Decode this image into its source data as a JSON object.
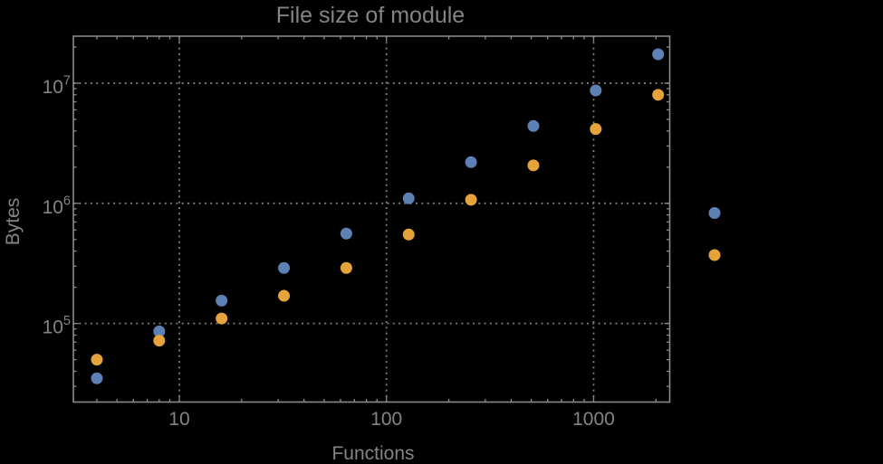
{
  "window": {
    "background": "#000000"
  },
  "colors": {
    "text": "#848484",
    "frame": "#8A8A8A",
    "gridline": "#7D7D7D",
    "series_blue": "#5E81B5",
    "series_orange": "#E6A33C"
  },
  "chart_data": {
    "type": "scatter",
    "title": "File size of module",
    "xlabel": "Functions",
    "ylabel": "Bytes",
    "x_scale": "log",
    "y_scale": "log",
    "grid": "dotted-major-decades",
    "x_domain": [
      3.08,
      2330
    ],
    "y_domain": [
      22200,
      24600000
    ],
    "x_major_ticks": [
      10,
      100,
      1000
    ],
    "y_major_ticks": [
      100000,
      1000000,
      10000000
    ],
    "x_tick_labels": [
      {
        "text": "10",
        "value": 10
      },
      {
        "text": "100",
        "value": 100
      },
      {
        "text": "1000",
        "value": 1000
      }
    ],
    "y_tick_labels": [
      {
        "base": "10",
        "exp": "5",
        "value": 100000
      },
      {
        "base": "10",
        "exp": "6",
        "value": 1000000
      },
      {
        "base": "10",
        "exp": "7",
        "value": 10000000
      }
    ],
    "x": [
      4,
      8,
      16,
      32,
      64,
      128,
      256,
      512,
      1024,
      2048
    ],
    "series": [
      {
        "name": "series-blue",
        "color": "#5E81B5",
        "values": [
          35000,
          86000,
          155000,
          290000,
          560000,
          1100000,
          2200000,
          4400000,
          8700000,
          17400000
        ]
      },
      {
        "name": "series-orange",
        "color": "#E6A33C",
        "values": [
          50000,
          72000,
          110000,
          170000,
          290000,
          550000,
          1070000,
          2070000,
          4150000,
          8000000
        ]
      }
    ],
    "legend": {
      "position": "center-right",
      "labels_visible": false,
      "markers": [
        {
          "series": "series-blue",
          "color": "#5E81B5"
        },
        {
          "series": "series-orange",
          "color": "#E6A33C"
        }
      ]
    }
  }
}
